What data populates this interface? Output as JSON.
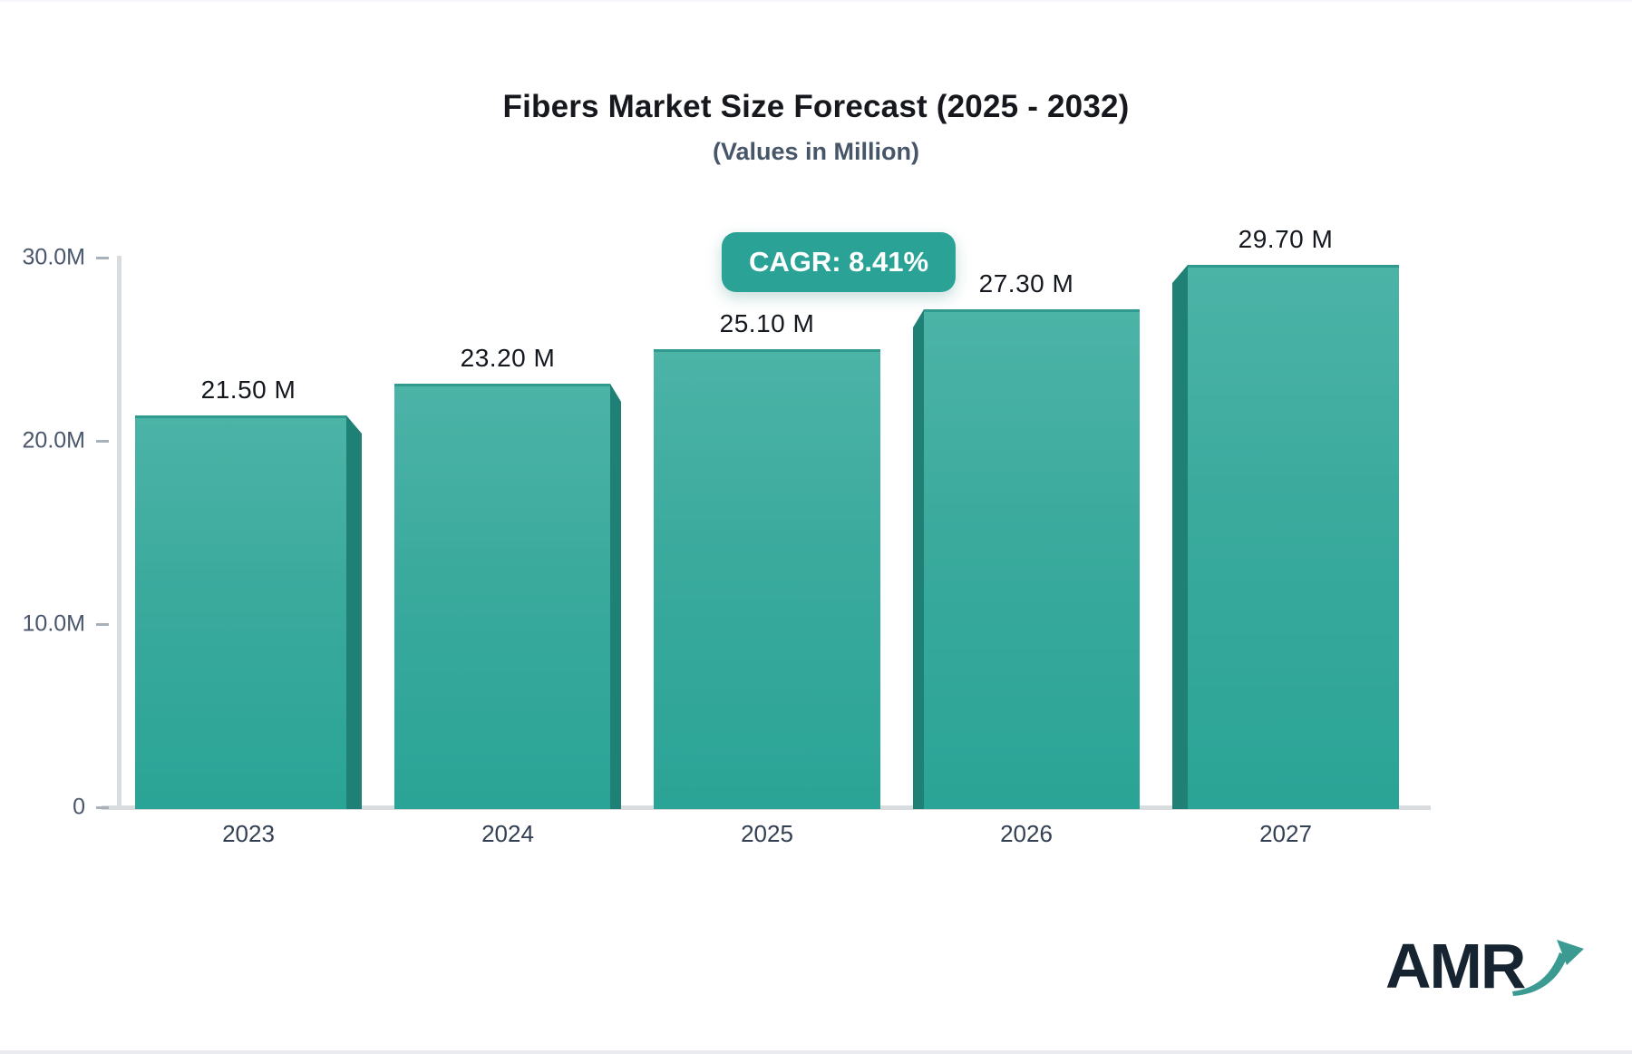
{
  "header": {
    "title": "Fibers Market Size Forecast (2025 - 2032)",
    "subtitle": "(Values in Million)"
  },
  "badge": {
    "label": "CAGR: 8.41%"
  },
  "chart_data": {
    "type": "bar",
    "title": "Fibers Market Size Forecast (2025 - 2032)",
    "subtitle": "(Values in Million)",
    "categories": [
      "2023",
      "2024",
      "2025",
      "2026",
      "2027"
    ],
    "values": [
      21.5,
      23.2,
      25.1,
      27.3,
      29.7
    ],
    "bar_labels": [
      "21.50 M",
      "23.20 M",
      "25.10 M",
      "27.30 M",
      "29.70 M"
    ],
    "annotation": "CAGR: 8.41%",
    "xlabel": "",
    "ylabel": "",
    "ylim": [
      0,
      30
    ],
    "yticks": [
      {
        "value": 0,
        "label": "0"
      },
      {
        "value": 10,
        "label": "10.0M"
      },
      {
        "value": 20,
        "label": "20.0M"
      },
      {
        "value": 30,
        "label": "30.0M"
      }
    ],
    "grid": false,
    "legend": false
  },
  "colors": {
    "bar_top": "#4cb3a7",
    "bar_bottom": "#2aa496",
    "bar_side": "#1f8076",
    "badge_bg": "#2aa396",
    "axis_line": "#d9dcdf",
    "tick_text": "#49566b",
    "title_text": "#16181d",
    "subtitle_text": "#475569",
    "value_text": "#14181f",
    "logo_text": "#152430",
    "logo_arrow": "#3b9a92"
  },
  "logo": {
    "text": "AMR"
  }
}
